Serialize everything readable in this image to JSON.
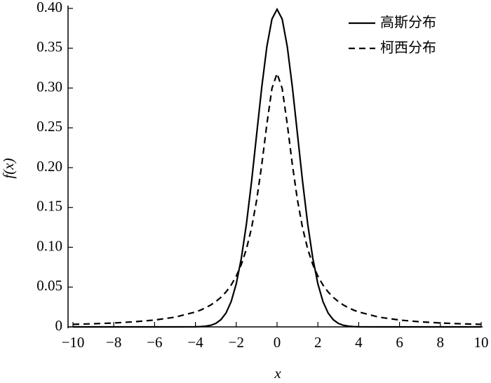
{
  "chart_data": {
    "type": "line",
    "xlabel": "x",
    "ylabel": "f(x)",
    "x": [
      -10,
      -9,
      -8,
      -7,
      -6,
      -5,
      -4,
      -3.75,
      -3.5,
      -3.25,
      -3,
      -2.75,
      -2.5,
      -2.25,
      -2,
      -1.75,
      -1.5,
      -1.25,
      -1,
      -0.75,
      -0.5,
      -0.25,
      0,
      0.25,
      0.5,
      0.75,
      1,
      1.25,
      1.5,
      1.75,
      2,
      2.25,
      2.5,
      2.75,
      3,
      3.25,
      3.5,
      3.75,
      4,
      5,
      6,
      7,
      8,
      9,
      10
    ],
    "series": [
      {
        "name": "高斯分布",
        "color": "#000000",
        "line_style": "solid",
        "values": [
          0,
          0,
          0,
          0,
          0,
          0,
          0.0001,
          0.0004,
          0.0009,
          0.002,
          0.0044,
          0.0091,
          0.0175,
          0.0317,
          0.054,
          0.0863,
          0.1295,
          0.1826,
          0.242,
          0.3011,
          0.3521,
          0.3867,
          0.3989,
          0.3867,
          0.3521,
          0.3011,
          0.242,
          0.1826,
          0.1295,
          0.0863,
          0.054,
          0.0317,
          0.0175,
          0.0091,
          0.0044,
          0.002,
          0.0009,
          0.0004,
          0.0001,
          0,
          0,
          0,
          0,
          0,
          0
        ]
      },
      {
        "name": "柯西分布",
        "color": "#000000",
        "line_style": "dashed",
        "values": [
          0.0032,
          0.0039,
          0.0049,
          0.0064,
          0.0086,
          0.0122,
          0.0187,
          0.0211,
          0.024,
          0.0275,
          0.0318,
          0.0372,
          0.0439,
          0.0525,
          0.0637,
          0.0784,
          0.0979,
          0.1242,
          0.1592,
          0.2037,
          0.2546,
          0.2996,
          0.3183,
          0.2996,
          0.2546,
          0.2037,
          0.1592,
          0.1242,
          0.0979,
          0.0784,
          0.0637,
          0.0525,
          0.0439,
          0.0372,
          0.0318,
          0.0275,
          0.024,
          0.0211,
          0.0187,
          0.0122,
          0.0086,
          0.0064,
          0.0049,
          0.0039,
          0.0032
        ]
      }
    ],
    "xlim": [
      -10,
      10
    ],
    "xticks": [
      {
        "value": -10,
        "label": "−10"
      },
      {
        "value": -8,
        "label": "−8"
      },
      {
        "value": -6,
        "label": "−6"
      },
      {
        "value": -4,
        "label": "−4"
      },
      {
        "value": -2,
        "label": "−2"
      },
      0,
      2,
      4,
      6,
      8,
      10
    ],
    "ylim": [
      0,
      0.4
    ],
    "yticks": [
      0,
      0.05,
      {
        "value": 0.1,
        "label": "0.10"
      },
      0.15,
      {
        "value": 0.2,
        "label": "0.20"
      },
      0.25,
      {
        "value": 0.3,
        "label": "0.30"
      },
      0.35,
      {
        "value": 0.4,
        "label": "0.40"
      }
    ],
    "legend": "upper right",
    "grid": false
  }
}
